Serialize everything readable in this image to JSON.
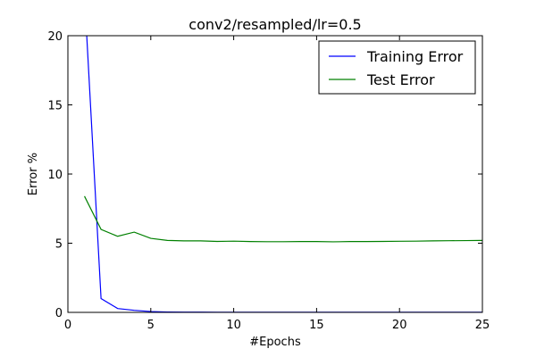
{
  "chart_data": {
    "type": "line",
    "title": "conv2/resampled/lr=0.5",
    "xlabel": "#Epochs",
    "ylabel": "Error %",
    "xlim": [
      0,
      25
    ],
    "ylim": [
      0,
      20
    ],
    "xticks": [
      0,
      5,
      10,
      15,
      20,
      25
    ],
    "yticks": [
      0,
      5,
      10,
      15,
      20
    ],
    "grid": false,
    "legend_position": "top-right",
    "series": [
      {
        "name": "Training Error",
        "color": "#0000ff",
        "x": [
          1,
          2,
          3,
          4,
          5,
          6,
          7,
          8,
          9,
          10,
          11,
          12,
          13,
          14,
          15,
          16,
          17,
          18,
          19,
          20,
          21,
          22,
          23,
          24,
          25
        ],
        "y": [
          23.0,
          1.0,
          0.28,
          0.15,
          0.06,
          0.03,
          0.02,
          0.02,
          0.01,
          0.01,
          0.01,
          0.01,
          0.01,
          0.01,
          0.01,
          0.01,
          0.01,
          0.01,
          0.01,
          0.01,
          0.01,
          0.01,
          0.01,
          0.01,
          0.01
        ]
      },
      {
        "name": "Test Error",
        "color": "#008000",
        "x": [
          1,
          2,
          3,
          4,
          5,
          6,
          7,
          8,
          9,
          10,
          11,
          12,
          13,
          14,
          15,
          16,
          17,
          18,
          19,
          20,
          21,
          22,
          23,
          24,
          25
        ],
        "y": [
          8.4,
          6.0,
          5.5,
          5.8,
          5.35,
          5.2,
          5.17,
          5.17,
          5.13,
          5.15,
          5.12,
          5.11,
          5.11,
          5.12,
          5.12,
          5.1,
          5.12,
          5.12,
          5.13,
          5.14,
          5.15,
          5.17,
          5.18,
          5.19,
          5.2
        ]
      }
    ]
  }
}
